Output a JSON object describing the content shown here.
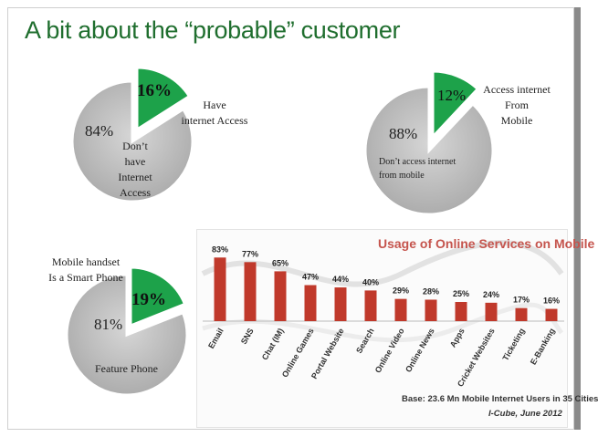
{
  "title": "A bit about the “probable” customer",
  "pie1": {
    "highlight_pct": "16%",
    "rest_pct": "84%",
    "highlight_label": [
      "Have",
      "internet Access"
    ],
    "rest_label": [
      "Don’t",
      "have",
      "Internet",
      "Access"
    ]
  },
  "pie2": {
    "highlight_pct": "12%",
    "rest_pct": "88%",
    "highlight_label": [
      "Access internet",
      "From",
      "Mobile"
    ],
    "rest_label": [
      "Don’t access internet",
      "from mobile"
    ]
  },
  "pie3": {
    "highlight_pct": "19%",
    "rest_pct": "81%",
    "highlight_label": [
      "Mobile handset",
      "Is a Smart Phone"
    ],
    "rest_label": [
      "Feature Phone"
    ]
  },
  "bar_panel": {
    "title": "Usage of Online Services on Mobile",
    "base": "Base: 23.6 Mn Mobile Internet Users in 35 Cities",
    "source": "I-Cube, June 2012"
  },
  "colors": {
    "title": "#1f6e2e",
    "highlight": "#1da24a",
    "pie_gray": "#bdbdbd",
    "bar": "#c0392b",
    "bar_title": "#c5544d"
  },
  "chart_data": [
    {
      "type": "pie",
      "slices": [
        {
          "label": "Have internet Access",
          "value": 16
        },
        {
          "label": "Don’t have Internet Access",
          "value": 84
        }
      ]
    },
    {
      "type": "pie",
      "slices": [
        {
          "label": "Access internet From Mobile",
          "value": 12
        },
        {
          "label": "Don’t access internet from mobile",
          "value": 88
        }
      ]
    },
    {
      "type": "pie",
      "slices": [
        {
          "label": "Mobile handset Is a Smart Phone",
          "value": 19
        },
        {
          "label": "Feature Phone",
          "value": 81
        }
      ]
    },
    {
      "type": "bar",
      "title": "Usage of Online Services on Mobile",
      "categories": [
        "Email",
        "SNS",
        "Chat (IM)",
        "Online Games",
        "Portal Website",
        "Search",
        "Online Video",
        "Online News",
        "Apps",
        "Cricket Websites",
        "Ticketing",
        "E-Banking"
      ],
      "values": [
        83,
        77,
        65,
        47,
        44,
        40,
        29,
        28,
        25,
        24,
        17,
        16
      ],
      "value_labels": [
        "83%",
        "77%",
        "65%",
        "47%",
        "44%",
        "40%",
        "29%",
        "28%",
        "25%",
        "24%",
        "17%",
        "16%"
      ],
      "ylim": [
        0,
        100
      ]
    }
  ]
}
